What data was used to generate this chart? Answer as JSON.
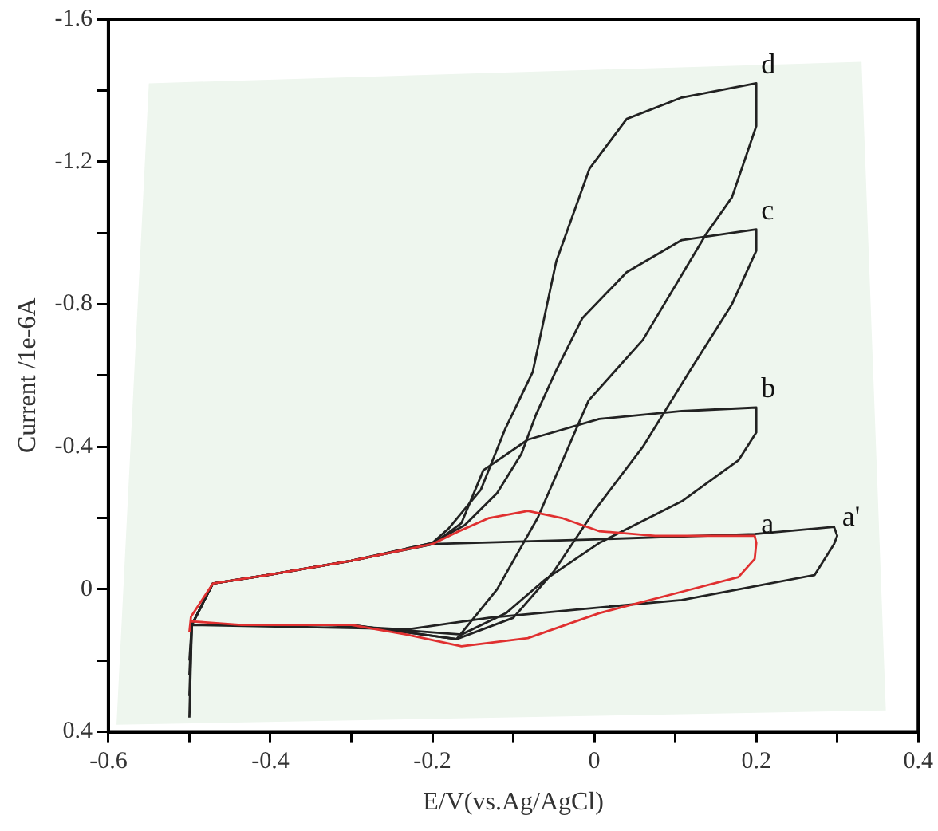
{
  "chart_data": {
    "type": "line",
    "xlabel": "E/V(vs.Ag/AgCl)",
    "ylabel": "Current /1e-6A",
    "xlim": [
      -0.6,
      0.4
    ],
    "ylim": [
      0.4,
      -1.6
    ],
    "xticks": [
      -0.6,
      {
        "value": -0.5,
        "label": null
      },
      -0.4,
      {
        "value": -0.3,
        "label": null
      },
      -0.2,
      {
        "value": -0.1,
        "label": null
      },
      0,
      {
        "value": 0.1,
        "label": null
      },
      0.2,
      {
        "value": 0.3,
        "label": null
      },
      0.4
    ],
    "yticks": [
      0.4,
      {
        "value": 0.2,
        "label": null
      },
      0,
      {
        "value": -0.2,
        "label": null
      },
      -0.4,
      {
        "value": -0.6,
        "label": null
      },
      -0.8,
      {
        "value": -1.0,
        "label": null
      },
      -1.2,
      {
        "value": -1.4,
        "label": null
      },
      -1.6
    ],
    "grid": false,
    "legend": false,
    "marker": "none",
    "line_style": "solid",
    "series": [
      {
        "name": "a",
        "color": "#e03030",
        "x": [
          -0.5,
          -0.498,
          -0.471,
          -0.404,
          -0.3,
          -0.2,
          -0.17,
          -0.13,
          -0.082,
          -0.04,
          0.006,
          0.075,
          0.198,
          0.2,
          0.198,
          0.178,
          0.108,
          0.006,
          -0.082,
          -0.164,
          -0.232,
          -0.3,
          -0.436,
          -0.498
        ],
        "values": [
          0.12,
          0.077,
          -0.016,
          -0.04,
          -0.08,
          -0.127,
          -0.16,
          -0.2,
          -0.22,
          -0.2,
          -0.163,
          -0.15,
          -0.15,
          -0.13,
          -0.085,
          -0.034,
          0.007,
          0.067,
          0.137,
          0.16,
          0.127,
          0.1,
          0.1,
          0.09
        ]
      },
      {
        "name": "a'",
        "color": "#222222",
        "x": [
          -0.5,
          -0.497,
          -0.471,
          -0.404,
          -0.3,
          -0.199,
          0.0,
          0.198,
          0.296,
          0.3,
          0.296,
          0.272,
          0.108,
          -0.027,
          -0.13,
          -0.232,
          -0.334,
          -0.498
        ],
        "values": [
          0.36,
          0.1,
          -0.016,
          -0.04,
          -0.08,
          -0.127,
          -0.14,
          -0.155,
          -0.175,
          -0.15,
          -0.127,
          -0.04,
          0.03,
          0.058,
          0.08,
          0.113,
          0.1,
          0.1
        ]
      },
      {
        "name": "b",
        "color": "#222222",
        "x": [
          -0.5,
          -0.497,
          -0.471,
          -0.404,
          -0.3,
          -0.199,
          -0.164,
          -0.137,
          -0.082,
          0.006,
          0.108,
          0.2,
          0.2,
          0.178,
          0.108,
          0.006,
          -0.062,
          -0.109,
          -0.164,
          -0.266,
          -0.498
        ],
        "values": [
          0.24,
          0.1,
          -0.016,
          -0.04,
          -0.08,
          -0.127,
          -0.186,
          -0.334,
          -0.42,
          -0.478,
          -0.5,
          -0.51,
          -0.44,
          -0.362,
          -0.247,
          -0.13,
          -0.025,
          0.067,
          0.127,
          0.11,
          0.1
        ]
      },
      {
        "name": "c",
        "color": "#222222",
        "x": [
          -0.5,
          -0.497,
          -0.471,
          -0.404,
          -0.3,
          -0.2,
          -0.16,
          -0.12,
          -0.09,
          -0.072,
          -0.048,
          -0.015,
          0.04,
          0.108,
          0.2,
          0.2,
          0.17,
          0.12,
          0.06,
          0.0,
          -0.05,
          -0.1,
          -0.17,
          -0.3,
          -0.498
        ],
        "values": [
          0.3,
          0.1,
          -0.016,
          -0.04,
          -0.08,
          -0.13,
          -0.18,
          -0.27,
          -0.38,
          -0.49,
          -0.61,
          -0.76,
          -0.89,
          -0.98,
          -1.01,
          -0.95,
          -0.8,
          -0.62,
          -0.4,
          -0.22,
          -0.05,
          0.08,
          0.14,
          0.1,
          0.1
        ]
      },
      {
        "name": "d",
        "color": "#222222",
        "x": [
          -0.5,
          -0.497,
          -0.471,
          -0.404,
          -0.3,
          -0.2,
          -0.18,
          -0.14,
          -0.11,
          -0.076,
          -0.047,
          -0.006,
          0.04,
          0.108,
          0.2,
          0.2,
          0.17,
          0.139,
          0.06,
          -0.007,
          -0.07,
          -0.12,
          -0.17,
          -0.3,
          -0.498
        ],
        "values": [
          0.2,
          0.1,
          -0.016,
          -0.04,
          -0.08,
          -0.13,
          -0.17,
          -0.28,
          -0.45,
          -0.61,
          -0.92,
          -1.18,
          -1.32,
          -1.38,
          -1.42,
          -1.3,
          -1.1,
          -1.0,
          -0.7,
          -0.53,
          -0.2,
          0.0,
          0.14,
          0.1,
          0.1
        ]
      }
    ]
  }
}
